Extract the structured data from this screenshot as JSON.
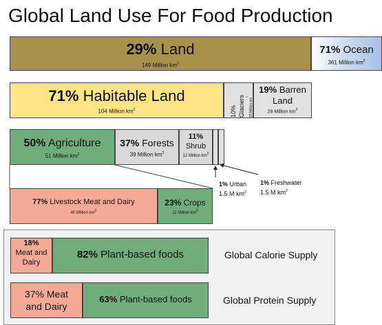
{
  "title": "Global Land Use For Food Production",
  "chart_data": {
    "type": "bar",
    "rows": [
      {
        "segments": [
          {
            "pct": 29,
            "pct_label": "29%",
            "label": "Land",
            "sub": "149 Million km",
            "color": "#a8914a"
          },
          {
            "pct": 71,
            "pct_label": "71%",
            "label": "Ocean",
            "sub": "361 Million km",
            "color": "#a9c1e6"
          }
        ]
      },
      {
        "segments": [
          {
            "pct": 71,
            "pct_label": "71%",
            "label": "Habitable Land",
            "sub": "104 Million km",
            "color": "#fde487"
          },
          {
            "pct": 10,
            "pct_label": "10%",
            "label": "Glaciers",
            "sub": "15 Million km",
            "color": "#e2e2e2"
          },
          {
            "pct": 19,
            "pct_label": "19%",
            "label_line1": "Barren",
            "label_line2": "Land",
            "sub": "28 Million km",
            "color": "#e2e2e2"
          }
        ]
      },
      {
        "segments": [
          {
            "pct": 50,
            "pct_label": "50%",
            "label": "Agriculture",
            "sub": "51 Million km",
            "color": "#6fae7a"
          },
          {
            "pct": 37,
            "pct_label": "37%",
            "label": "Forests",
            "sub": "39 Million km",
            "color": "#d9d9d9"
          },
          {
            "pct": 11,
            "pct_label": "11%",
            "label": "Shrub",
            "sub": "12 Million km",
            "color": "#d9d9d9"
          },
          {
            "pct": 1,
            "pct_label": "1%",
            "label": "Urban",
            "sub": "1.5 M km",
            "color": "#e0e0e0"
          },
          {
            "pct": 1,
            "pct_label": "1%",
            "label": "Freshwater",
            "sub": "1.5 M km",
            "color": "#e0e0e0"
          }
        ]
      },
      {
        "segments": [
          {
            "pct": 77,
            "pct_label": "77%",
            "label": "Livestock Meat and Dairy",
            "sub": "40 Million km",
            "color": "#f5aa97"
          },
          {
            "pct": 23,
            "pct_label": "23%",
            "label": "Crops",
            "sub": "11 Million km",
            "color": "#6fae7a"
          }
        ]
      },
      {
        "name": "Global Calorie Supply",
        "segments": [
          {
            "pct": 18,
            "pct_label": "18%",
            "label_line1": "Meat and",
            "label_line2": "Dairy",
            "color": "#f5aa97"
          },
          {
            "pct": 82,
            "pct_label": "82%",
            "label": "Plant-based foods",
            "color": "#6fae7a"
          }
        ]
      },
      {
        "name": "Global Protein Supply",
        "segments": [
          {
            "pct": 37,
            "pct_label": "37% Meat",
            "label": "and Dairy",
            "color": "#f5aa97"
          },
          {
            "pct": 63,
            "pct_label": "63%",
            "label": "Plant-based foods",
            "color": "#6fae7a"
          }
        ]
      }
    ],
    "area_unit_superscript": "2"
  }
}
